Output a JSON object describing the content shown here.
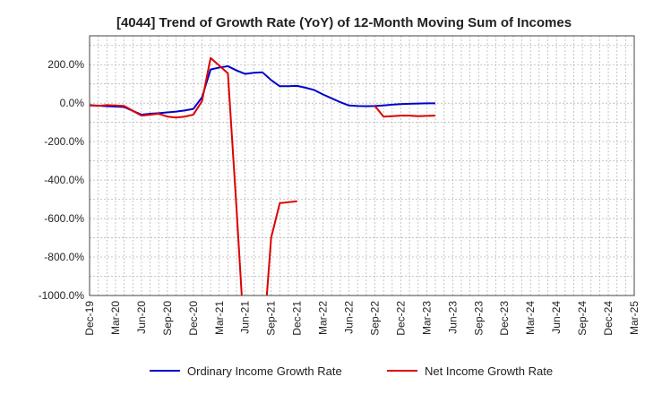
{
  "chart_data": {
    "type": "line",
    "title": "[4044]  Trend of Growth Rate (YoY) of 12-Month Moving Sum of Incomes",
    "xlabel": "",
    "ylabel": "",
    "ylim": [
      -1000,
      350
    ],
    "y_ticks": [
      200,
      0,
      -200,
      -400,
      -600,
      -800,
      -1000
    ],
    "y_tick_labels": [
      "200.0%",
      "0.0%",
      "-200.0%",
      "-400.0%",
      "-600.0%",
      "-800.0%",
      "-1000.0%"
    ],
    "x_tick_labels": [
      "Dec-19",
      "Mar-20",
      "Jun-20",
      "Sep-20",
      "Dec-20",
      "Mar-21",
      "Jun-21",
      "Sep-21",
      "Dec-21",
      "Mar-22",
      "Jun-22",
      "Sep-22",
      "Dec-22",
      "Mar-23",
      "Jun-23",
      "Sep-23",
      "Dec-23",
      "Mar-24",
      "Jun-24",
      "Sep-24",
      "Dec-24",
      "Mar-25"
    ],
    "grid": true,
    "legend_position": "bottom",
    "series": [
      {
        "name": "Ordinary Income Growth Rate",
        "color": "#0000cc",
        "values": [
          -10,
          -13,
          -16,
          -18,
          -20,
          -40,
          -60,
          -55,
          -52,
          -48,
          -44,
          -38,
          -30,
          30,
          175,
          185,
          192,
          170,
          152,
          158,
          160,
          120,
          88,
          88,
          90,
          80,
          68,
          45,
          25,
          5,
          -12,
          -15,
          -16,
          -15,
          -12,
          -8,
          -5,
          -3,
          -2,
          -1,
          -1,
          null
        ]
      },
      {
        "name": "Net Income Growth Rate",
        "color": "#dd0000",
        "values": [
          -12,
          -14,
          -10,
          -12,
          -15,
          -40,
          -65,
          -60,
          -55,
          -70,
          -75,
          -70,
          -60,
          10,
          235,
          195,
          155,
          -550,
          -1300,
          null,
          -1300,
          -700,
          -520,
          -515,
          -510,
          null,
          null,
          null,
          null,
          null,
          null,
          null,
          null,
          -15,
          -70,
          -68,
          -65,
          -65,
          -68,
          -66,
          -65,
          null
        ]
      }
    ]
  }
}
